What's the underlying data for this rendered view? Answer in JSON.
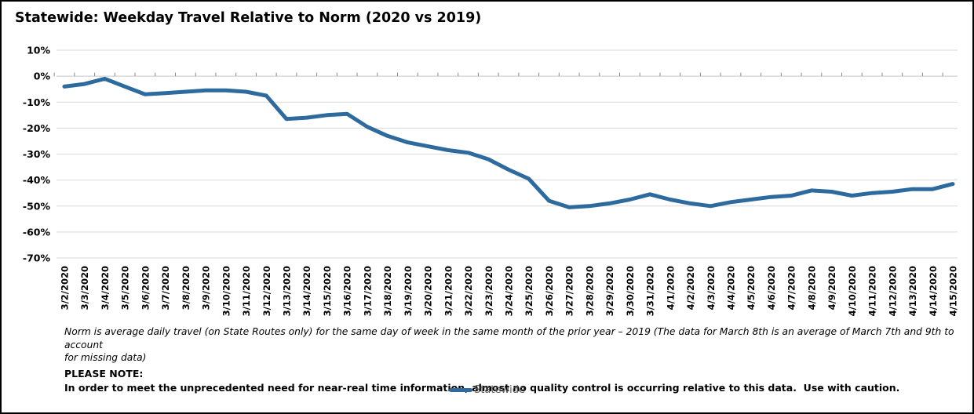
{
  "title": "Statewide: Weekday Travel Relative to Norm (2020 vs 2019)",
  "chart_data": {
    "type": "line",
    "title": "Statewide: Weekday Travel Relative to Norm (2020 vs 2019)",
    "xlabel": "",
    "ylabel": "",
    "ylim": [
      -70,
      10
    ],
    "ytick_step": 10,
    "ytick_format": "percent",
    "grid": true,
    "legend_position": "bottom",
    "categories": [
      "3/2/2020",
      "3/3/2020",
      "3/4/2020",
      "3/5/2020",
      "3/6/2020",
      "3/7/2020",
      "3/8/2020",
      "3/9/2020",
      "3/10/2020",
      "3/11/2020",
      "3/12/2020",
      "3/13/2020",
      "3/14/2020",
      "3/15/2020",
      "3/16/2020",
      "3/17/2020",
      "3/18/2020",
      "3/19/2020",
      "3/20/2020",
      "3/21/2020",
      "3/22/2020",
      "3/23/2020",
      "3/24/2020",
      "3/25/2020",
      "3/26/2020",
      "3/27/2020",
      "3/28/2020",
      "3/29/2020",
      "3/30/2020",
      "3/31/2020",
      "4/1/2020",
      "4/2/2020",
      "4/3/2020",
      "4/4/2020",
      "4/5/2020",
      "4/6/2020",
      "4/7/2020",
      "4/8/2020",
      "4/9/2020",
      "4/10/2020",
      "4/11/2020",
      "4/12/2020",
      "4/13/2020",
      "4/14/2020",
      "4/15/2020"
    ],
    "series": [
      {
        "name": "Statewide",
        "color": "#2d6b9e",
        "values": [
          -4,
          -3,
          -1,
          -4,
          -7,
          -6.5,
          -6,
          -5.5,
          -5.5,
          -6,
          -7.5,
          -16.5,
          -16,
          -15,
          -14.5,
          -19.5,
          -23,
          -25.5,
          -27,
          -28.5,
          -29.5,
          -32,
          -36,
          -39.5,
          -48,
          -50.5,
          -50,
          -49,
          -47.5,
          -45.5,
          -47.5,
          -49,
          -50,
          -48.5,
          -47.5,
          -46.5,
          -46,
          -44,
          -44.5,
          -46,
          -45,
          -44.5,
          -43.5,
          -43.5,
          -41.5
        ]
      }
    ]
  },
  "footnotes": {
    "norm_note_line1": "Norm is average daily travel (on State Routes only) for the same day of week in the same month of the prior year – 2019 (The data for March 8th is an average of March 7th and 9th to account",
    "norm_note_line2": "for missing data)",
    "please_note_label": "PLEASE NOTE:",
    "caution": "In order to meet the unprecedented need for near-real time information, almost no quality control is occurring relative to this data.  Use with caution."
  },
  "legend": {
    "label": "Statewide",
    "color": "#2d6b9e"
  },
  "colors": {
    "line": "#2d6b9e",
    "gridline": "#d9d9d9",
    "zero_axis": "#c6c6c6",
    "tick": "#8a8a8a",
    "label_text": "#000000",
    "legend_text": "#595959"
  }
}
